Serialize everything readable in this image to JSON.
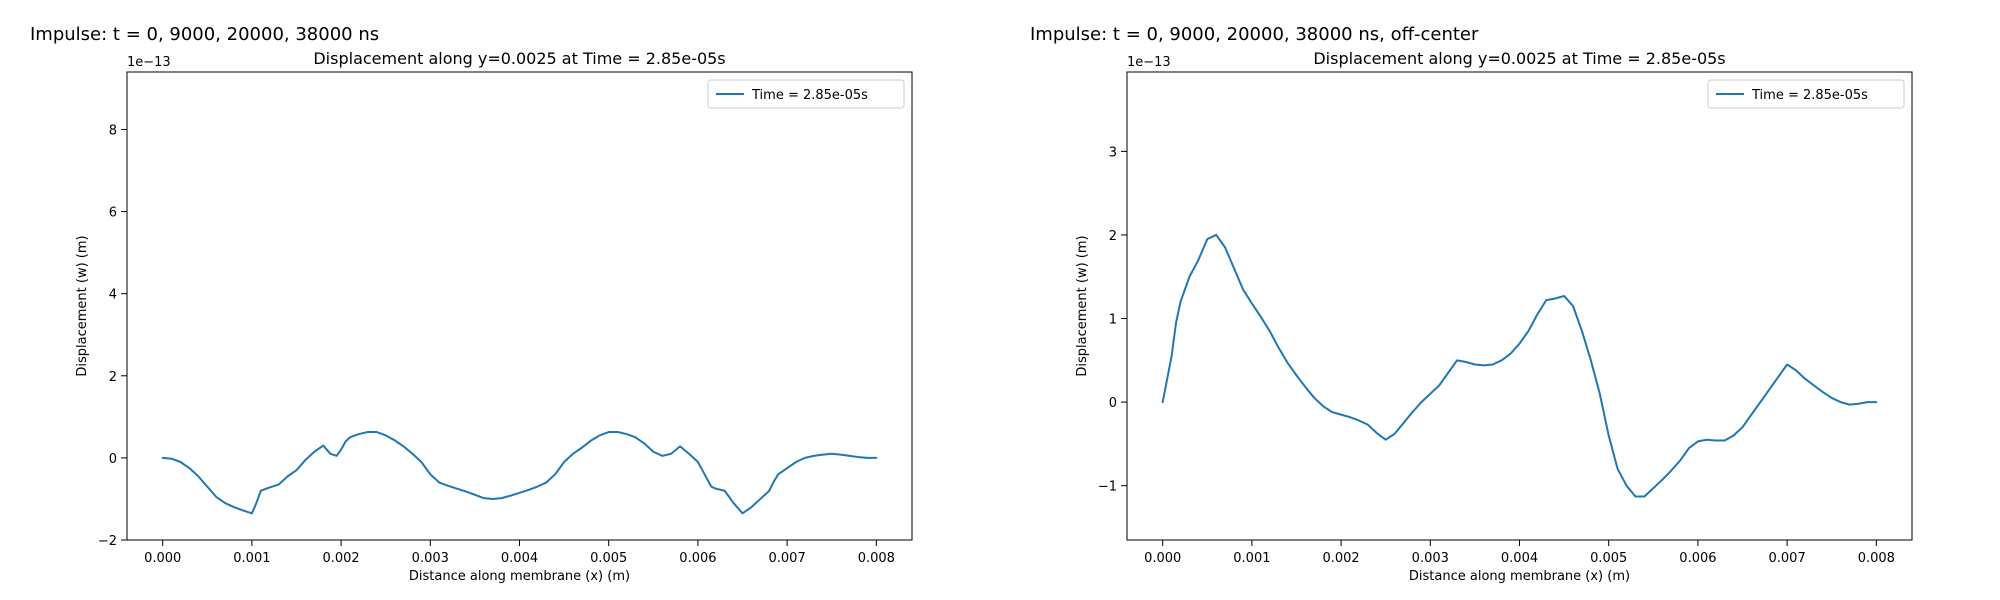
{
  "chart_data": [
    {
      "type": "line",
      "suptitle": "Impulse: t = 0, 9000, 20000, 38000 ns",
      "title": "Displacement along y=0.0025 at Time = 2.85e-05s",
      "xlabel": "Distance along membrane (x) (m)",
      "ylabel": "Displacement (w) (m)",
      "y_offset_label": "1e−13",
      "xlim": [
        -0.0004,
        0.0084
      ],
      "ylim": [
        -2.0,
        9.4
      ],
      "x_ticks": [
        0.0,
        0.001,
        0.002,
        0.003,
        0.004,
        0.005,
        0.006,
        0.007,
        0.008
      ],
      "x_tick_labels": [
        "0.000",
        "0.001",
        "0.002",
        "0.003",
        "0.004",
        "0.005",
        "0.006",
        "0.007",
        "0.008"
      ],
      "y_ticks": [
        -2,
        0,
        2,
        4,
        6,
        8
      ],
      "y_tick_labels": [
        "−2",
        "0",
        "2",
        "4",
        "6",
        "8"
      ],
      "grid": false,
      "legend_position": "top-right",
      "color": "#1f77b4",
      "series": [
        {
          "name": "Time = 2.85e-05s",
          "x": [
            0.0,
            0.0001,
            0.0002,
            0.0003,
            0.0004,
            0.0005,
            0.0006,
            0.0007,
            0.0008,
            0.0009,
            0.001,
            0.00105,
            0.0011,
            0.0012,
            0.0013,
            0.0014,
            0.0015,
            0.0016,
            0.0017,
            0.0018,
            0.00188,
            0.00195,
            0.002,
            0.00205,
            0.0021,
            0.0022,
            0.0023,
            0.0024,
            0.0025,
            0.0026,
            0.0027,
            0.0028,
            0.0029,
            0.003,
            0.0031,
            0.0032,
            0.0033,
            0.0034,
            0.0035,
            0.0036,
            0.0037,
            0.0038,
            0.0039,
            0.004,
            0.0041,
            0.0042,
            0.0043,
            0.0044,
            0.0045,
            0.0046,
            0.0047,
            0.0048,
            0.0049,
            0.005,
            0.0051,
            0.0052,
            0.0053,
            0.0054,
            0.0055,
            0.0056,
            0.0057,
            0.0058,
            0.0059,
            0.006,
            0.00605,
            0.0061,
            0.00615,
            0.0062,
            0.0063,
            0.0064,
            0.0065,
            0.0066,
            0.0067,
            0.0068,
            0.00685,
            0.0069,
            0.007,
            0.0071,
            0.0072,
            0.0073,
            0.0074,
            0.0075,
            0.0076,
            0.0077,
            0.0078,
            0.0079,
            0.008
          ],
          "y": [
            0.0,
            -0.02,
            -0.1,
            -0.25,
            -0.45,
            -0.7,
            -0.95,
            -1.1,
            -1.2,
            -1.28,
            -1.35,
            -1.1,
            -0.8,
            -0.72,
            -0.65,
            -0.45,
            -0.3,
            -0.05,
            0.15,
            0.3,
            0.1,
            0.05,
            0.2,
            0.4,
            0.5,
            0.58,
            0.63,
            0.63,
            0.55,
            0.43,
            0.28,
            0.1,
            -0.1,
            -0.4,
            -0.6,
            -0.68,
            -0.75,
            -0.82,
            -0.9,
            -0.98,
            -1.0,
            -0.98,
            -0.92,
            -0.85,
            -0.78,
            -0.7,
            -0.6,
            -0.4,
            -0.1,
            0.1,
            0.25,
            0.42,
            0.55,
            0.63,
            0.63,
            0.58,
            0.5,
            0.35,
            0.15,
            0.05,
            0.1,
            0.28,
            0.1,
            -0.1,
            -0.3,
            -0.5,
            -0.7,
            -0.75,
            -0.8,
            -1.1,
            -1.35,
            -1.2,
            -1.0,
            -0.8,
            -0.58,
            -0.4,
            -0.25,
            -0.1,
            0.0,
            0.05,
            0.08,
            0.1,
            0.08,
            0.05,
            0.02,
            0.0,
            0.0
          ]
        }
      ]
    },
    {
      "type": "line",
      "suptitle": "Impulse: t = 0, 9000, 20000, 38000 ns, off-center",
      "title": "Displacement along y=0.0025 at Time = 2.85e-05s",
      "xlabel": "Distance along membrane (x) (m)",
      "ylabel": "Displacement (w) (m)",
      "y_offset_label": "1e−13",
      "xlim": [
        -0.0004,
        0.0084
      ],
      "ylim": [
        -1.65,
        3.95
      ],
      "x_ticks": [
        0.0,
        0.001,
        0.002,
        0.003,
        0.004,
        0.005,
        0.006,
        0.007,
        0.008
      ],
      "x_tick_labels": [
        "0.000",
        "0.001",
        "0.002",
        "0.003",
        "0.004",
        "0.005",
        "0.006",
        "0.007",
        "0.008"
      ],
      "y_ticks": [
        -1,
        0,
        1,
        2,
        3
      ],
      "y_tick_labels": [
        "−1",
        "0",
        "1",
        "2",
        "3"
      ],
      "grid": false,
      "legend_position": "top-right",
      "color": "#1f77b4",
      "series": [
        {
          "name": "Time = 2.85e-05s",
          "x": [
            0.0,
            0.0001,
            0.00015,
            0.0002,
            0.0003,
            0.0004,
            0.0005,
            0.0006,
            0.0007,
            0.0008,
            0.0009,
            0.001,
            0.0011,
            0.0012,
            0.0013,
            0.0014,
            0.0015,
            0.0016,
            0.0017,
            0.0018,
            0.0019,
            0.002,
            0.0021,
            0.0022,
            0.0023,
            0.0024,
            0.0025,
            0.0026,
            0.0027,
            0.0028,
            0.0029,
            0.003,
            0.0031,
            0.0032,
            0.0033,
            0.0034,
            0.0035,
            0.0036,
            0.0037,
            0.0038,
            0.0039,
            0.004,
            0.0041,
            0.0042,
            0.0043,
            0.0044,
            0.0045,
            0.0046,
            0.0047,
            0.0048,
            0.0049,
            0.005,
            0.0051,
            0.0052,
            0.0053,
            0.0054,
            0.0055,
            0.0056,
            0.0057,
            0.0058,
            0.0059,
            0.006,
            0.0061,
            0.0062,
            0.0063,
            0.0064,
            0.0065,
            0.0066,
            0.0067,
            0.0068,
            0.0069,
            0.007,
            0.0071,
            0.0072,
            0.0073,
            0.0074,
            0.0075,
            0.0076,
            0.0077,
            0.0078,
            0.0079,
            0.008
          ],
          "y": [
            0.0,
            0.55,
            0.95,
            1.2,
            1.5,
            1.7,
            1.95,
            2.0,
            1.85,
            1.6,
            1.35,
            1.18,
            1.02,
            0.85,
            0.65,
            0.47,
            0.32,
            0.18,
            0.05,
            -0.05,
            -0.12,
            -0.15,
            -0.18,
            -0.22,
            -0.27,
            -0.37,
            -0.45,
            -0.38,
            -0.25,
            -0.12,
            0.0,
            0.1,
            0.2,
            0.35,
            0.5,
            0.48,
            0.45,
            0.44,
            0.45,
            0.5,
            0.58,
            0.7,
            0.85,
            1.05,
            1.22,
            1.24,
            1.27,
            1.15,
            0.85,
            0.5,
            0.1,
            -0.4,
            -0.8,
            -1.0,
            -1.13,
            -1.13,
            -1.03,
            -0.93,
            -0.82,
            -0.7,
            -0.55,
            -0.47,
            -0.45,
            -0.46,
            -0.46,
            -0.4,
            -0.3,
            -0.15,
            0.0,
            0.15,
            0.3,
            0.45,
            0.38,
            0.28,
            0.2,
            0.12,
            0.05,
            0.0,
            -0.03,
            -0.02,
            0.0,
            0.0
          ]
        }
      ]
    }
  ]
}
